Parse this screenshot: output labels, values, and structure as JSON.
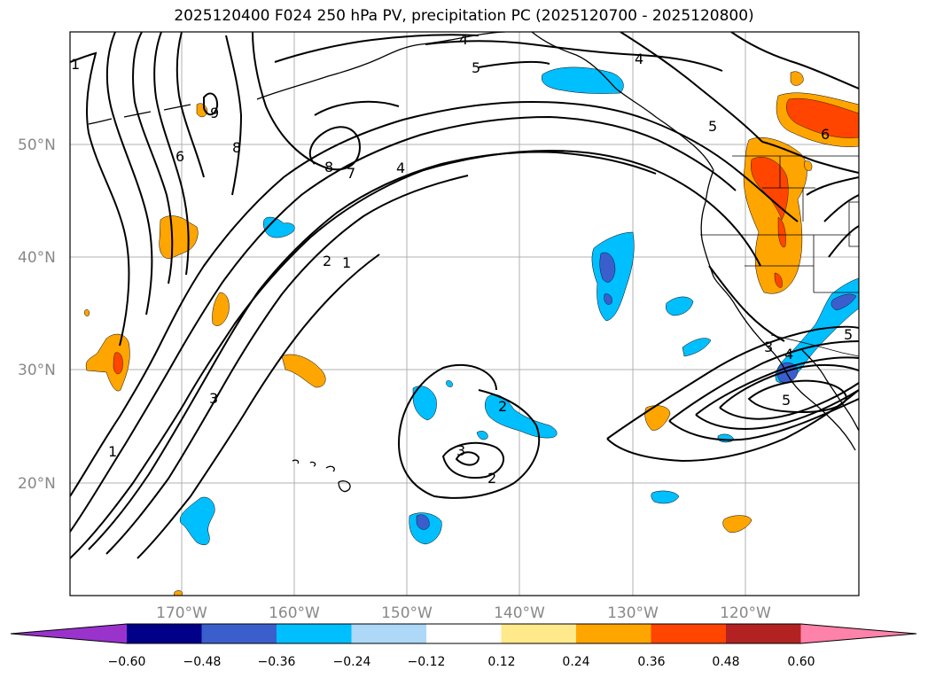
{
  "title": "2025120400 F024 250 hPa PV, precipitation PC (2025120700 - 2025120800)",
  "latitude_labels": [
    "50°N",
    "40°N",
    "30°N",
    "20°N"
  ],
  "longitude_labels": [
    "170°W",
    "160°W",
    "150°W",
    "140°W",
    "130°W",
    "120°W"
  ],
  "contour_labels": [
    "1",
    "6",
    "9",
    "8",
    "8",
    "7",
    "4",
    "5",
    "4",
    "4",
    "5",
    "6",
    "2",
    "1",
    "3",
    "1",
    "2",
    "3",
    "2",
    "3",
    "4",
    "5",
    "5"
  ],
  "colorbar": {
    "ticks": [
      "−0.60",
      "−0.48",
      "−0.36",
      "−0.24",
      "−0.12",
      "0.12",
      "0.24",
      "0.36",
      "0.48",
      "0.60"
    ],
    "colors": [
      "#9933cc",
      "#000088",
      "#3a5fcd",
      "#00bfff",
      "#add8f7",
      "#ffffff",
      "#ffe98a",
      "#ffa500",
      "#ff4500",
      "#b22222",
      "#ff82ab"
    ]
  },
  "fill_colors": {
    "orange": "#ffa500",
    "red_orange": "#ff4500",
    "blue": "#00bfff",
    "dark_blue": "#3a5fcd"
  }
}
